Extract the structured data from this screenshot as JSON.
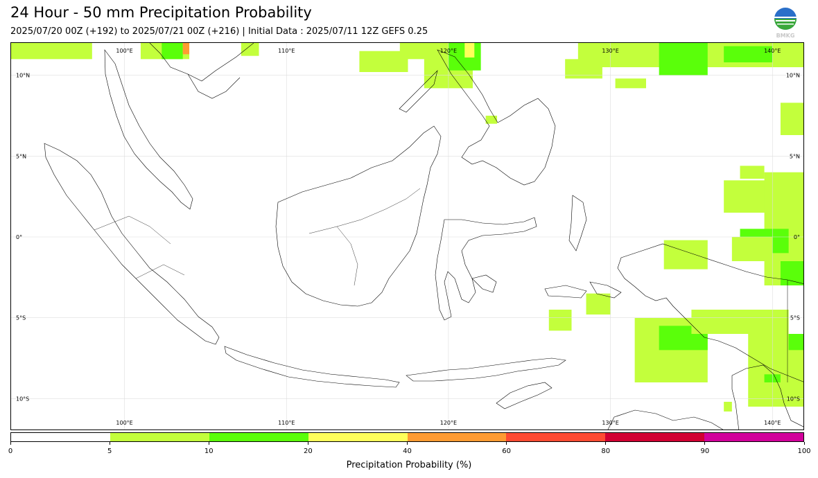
{
  "title": "24 Hour - 50 mm Precipitation Probability",
  "subtitle": "2025/07/20 00Z (+192) to 2025/07/21 00Z (+216) | Initial Data : 2025/07/11 12Z GEFS 0.25",
  "logo": {
    "text": "BMKG",
    "icon": "bmkg-logo-icon"
  },
  "map": {
    "lon_labels": [
      "100°E",
      "110°E",
      "120°E",
      "130°E",
      "140°E"
    ],
    "lat_labels": [
      "10°N",
      "5°N",
      "0°",
      "5°S",
      "10°S"
    ],
    "grid": true
  },
  "colorbar": {
    "title": "Precipitation Probability (%)",
    "boundaries": [
      "0",
      "5",
      "10",
      "20",
      "40",
      "60",
      "80",
      "90",
      "100"
    ],
    "colors": [
      "#ffffff",
      "#c3ff3c",
      "#5aff0a",
      "#ffff5a",
      "#ff9b32",
      "#ff4b32",
      "#d20032",
      "#d2009b"
    ]
  },
  "chart_data": {
    "type": "heatmap",
    "title": "24 Hour - 50 mm Precipitation Probability",
    "xlabel": "",
    "ylabel": "",
    "xlim": [
      93,
      142
    ],
    "ylim": [
      -12,
      12
    ],
    "colorbar_label": "Precipitation Probability (%)",
    "levels": [
      0,
      5,
      10,
      20,
      40,
      60,
      80,
      90,
      100
    ],
    "regions": [
      {
        "name": "",
        "lon": [
          93,
          98
        ],
        "lat": [
          11,
          12
        ],
        "category": "5-10"
      },
      {
        "name": "",
        "lon": [
          101,
          104
        ],
        "lat": [
          11,
          12
        ],
        "category": "5-10"
      },
      {
        "name": "",
        "lon": [
          102.3,
          103.6
        ],
        "lat": [
          11,
          12
        ],
        "category": "10-20"
      },
      {
        "name": "",
        "lon": [
          103.6,
          104
        ],
        "lat": [
          11.3,
          12
        ],
        "category": "40-60"
      },
      {
        "name": "",
        "lon": [
          107.2,
          108.3
        ],
        "lat": [
          11.2,
          12
        ],
        "category": "5-10"
      },
      {
        "name": "",
        "lon": [
          114.5,
          117.5
        ],
        "lat": [
          10.2,
          11.5
        ],
        "category": "5-10"
      },
      {
        "name": "",
        "lon": [
          117,
          121
        ],
        "lat": [
          11,
          12
        ],
        "category": "5-10"
      },
      {
        "name": "",
        "lon": [
          118.5,
          121.5
        ],
        "lat": [
          9.2,
          12
        ],
        "category": "5-10"
      },
      {
        "name": "",
        "lon": [
          120,
          122
        ],
        "lat": [
          10.3,
          12
        ],
        "category": "10-20"
      },
      {
        "name": "",
        "lon": [
          121,
          121.6
        ],
        "lat": [
          11.1,
          12
        ],
        "category": "20-40"
      },
      {
        "name": "",
        "lon": [
          122.3,
          123
        ],
        "lat": [
          7,
          7.5
        ],
        "category": "5-10"
      },
      {
        "name": "",
        "lon": [
          128,
          142
        ],
        "lat": [
          10.5,
          12
        ],
        "category": "5-10"
      },
      {
        "name": "",
        "lon": [
          127.2,
          129.5
        ],
        "lat": [
          9.8,
          11
        ],
        "category": "5-10"
      },
      {
        "name": "",
        "lon": [
          130.3,
          132.2
        ],
        "lat": [
          9.2,
          9.8
        ],
        "category": "5-10"
      },
      {
        "name": "",
        "lon": [
          133,
          136
        ],
        "lat": [
          10,
          12
        ],
        "category": "10-20"
      },
      {
        "name": "",
        "lon": [
          137,
          140
        ],
        "lat": [
          10.8,
          11.8
        ],
        "category": "10-20"
      },
      {
        "name": "",
        "lon": [
          140.5,
          142
        ],
        "lat": [
          6.3,
          8.3
        ],
        "category": "5-10"
      },
      {
        "name": "",
        "lon": [
          138,
          139.5
        ],
        "lat": [
          3.6,
          4.4
        ],
        "category": "5-10"
      },
      {
        "name": "",
        "lon": [
          137,
          140
        ],
        "lat": [
          1.5,
          3.5
        ],
        "category": "5-10"
      },
      {
        "name": "",
        "lon": [
          139.5,
          142
        ],
        "lat": [
          -3,
          4
        ],
        "category": "5-10"
      },
      {
        "name": "",
        "lon": [
          138,
          141
        ],
        "lat": [
          -1,
          0.5
        ],
        "category": "10-20"
      },
      {
        "name": "",
        "lon": [
          140.5,
          142
        ],
        "lat": [
          -3,
          -1.5
        ],
        "category": "10-20"
      },
      {
        "name": "",
        "lon": [
          133.3,
          136
        ],
        "lat": [
          -2,
          -0.2
        ],
        "category": "5-10"
      },
      {
        "name": "",
        "lon": [
          137.5,
          140
        ],
        "lat": [
          -1.5,
          0
        ],
        "category": "5-10"
      },
      {
        "name": "",
        "lon": [
          128.5,
          130
        ],
        "lat": [
          -4.8,
          -3.5
        ],
        "category": "5-10"
      },
      {
        "name": "",
        "lon": [
          126.2,
          127.6
        ],
        "lat": [
          -5.8,
          -4.5
        ],
        "category": "5-10"
      },
      {
        "name": "",
        "lon": [
          131.5,
          136
        ],
        "lat": [
          -9,
          -5
        ],
        "category": "5-10"
      },
      {
        "name": "",
        "lon": [
          133,
          136
        ],
        "lat": [
          -7,
          -5.5
        ],
        "category": "10-20"
      },
      {
        "name": "",
        "lon": [
          135,
          141
        ],
        "lat": [
          -6,
          -4.5
        ],
        "category": "5-10"
      },
      {
        "name": "",
        "lon": [
          138.5,
          142
        ],
        "lat": [
          -10.5,
          -6
        ],
        "category": "5-10"
      },
      {
        "name": "",
        "lon": [
          139.5,
          140.5
        ],
        "lat": [
          -9,
          -8.5
        ],
        "category": "10-20"
      },
      {
        "name": "",
        "lon": [
          141,
          142
        ],
        "lat": [
          -7,
          -6
        ],
        "category": "10-20"
      },
      {
        "name": "",
        "lon": [
          137,
          137.5
        ],
        "lat": [
          -10.8,
          -10.2
        ],
        "category": "5-10"
      }
    ]
  }
}
